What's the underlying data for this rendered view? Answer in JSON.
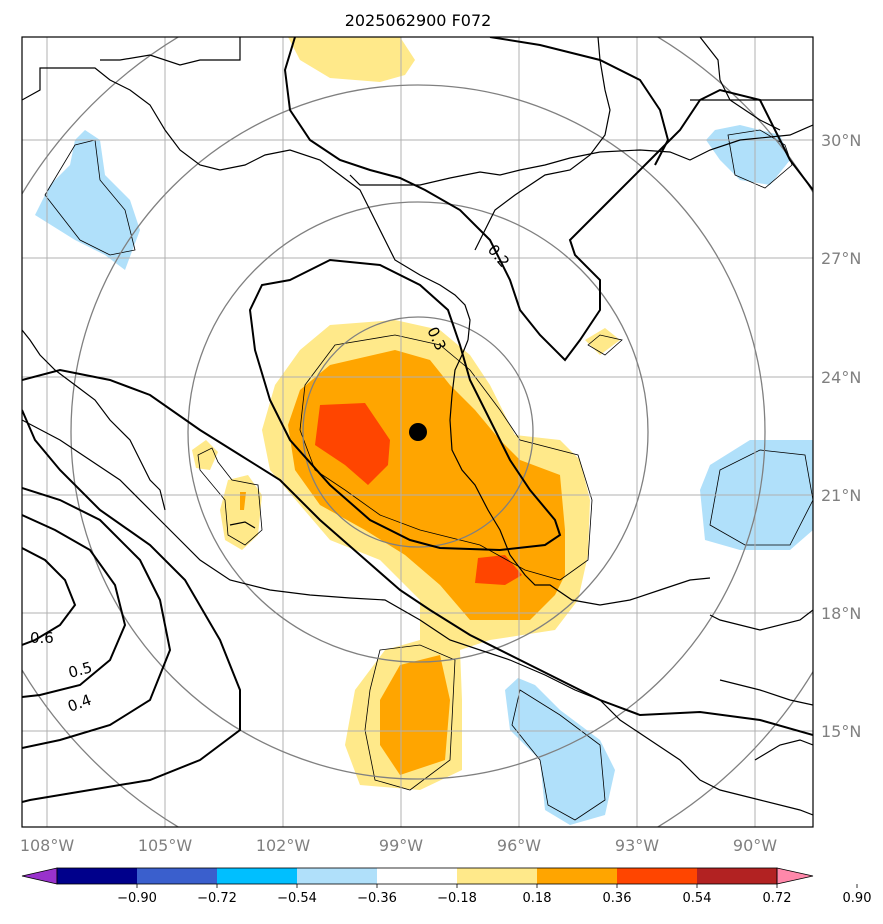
{
  "title": "2025062900 F072",
  "lon_labels": [
    "108°W",
    "105°W",
    "102°W",
    "99°W",
    "96°W",
    "93°W",
    "90°W"
  ],
  "lat_labels": [
    "30°N",
    "27°N",
    "24°N",
    "21°N",
    "18°N",
    "15°N"
  ],
  "contour_labels": [
    "0.6",
    "0.5",
    "0.4",
    "0.3",
    "0.2"
  ],
  "colorbar": {
    "ticks": [
      "−0.90",
      "−0.72",
      "−0.54",
      "−0.36",
      "−0.18",
      "0.18",
      "0.36",
      "0.54",
      "0.72",
      "0.90"
    ],
    "colors": [
      "#9932cc",
      "#00008b",
      "#3a5fcd",
      "#00bfff",
      "#b0e0fa",
      "#ffffff",
      "#ffe98a",
      "#ffa500",
      "#ff4500",
      "#b22222",
      "#ff88aa"
    ]
  },
  "field_colors": {
    "light_yellow": "#ffe98a",
    "orange": "#ffa500",
    "red_orange": "#ff4500",
    "light_blue": "#b0e0fa"
  },
  "center_marker": "storm-center-dot"
}
